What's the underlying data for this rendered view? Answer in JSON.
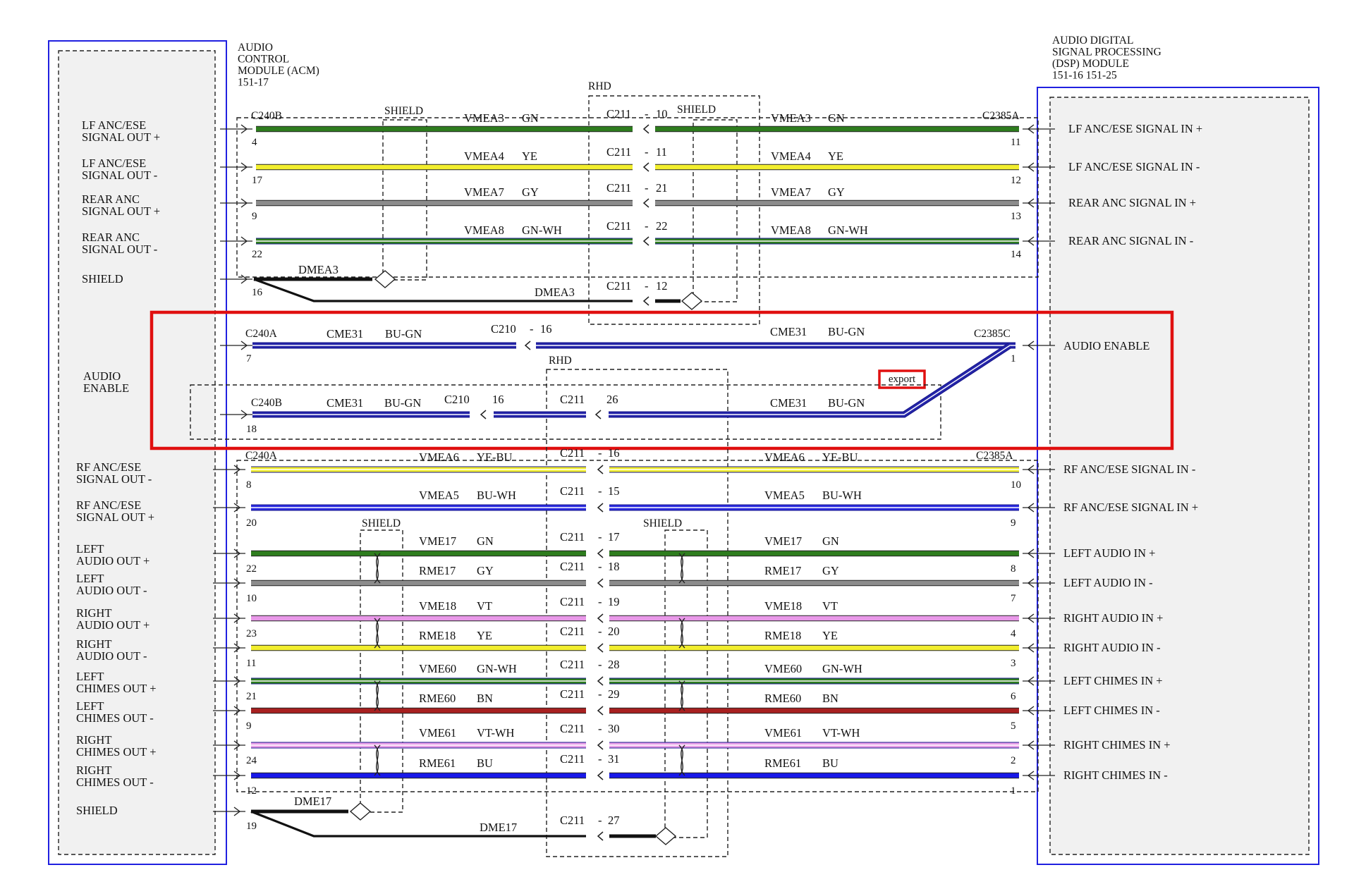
{
  "modules": {
    "acm": {
      "title": [
        "AUDIO",
        "CONTROL",
        "MODULE (ACM)",
        "151-17"
      ]
    },
    "dsp": {
      "title": [
        "AUDIO DIGITAL",
        "SIGNAL PROCESSING",
        "(DSP) MODULE",
        "151-16   151-25"
      ]
    }
  },
  "rhd_label": "RHD",
  "shield_label": "SHIELD",
  "export_label": "export",
  "colors": {
    "GN": "#2e7d1e",
    "YE": "#f2ee2e",
    "GY": "#8c8c8c",
    "BU": "#1818e8",
    "BN": "#a82020",
    "VT": "#e898e8",
    "BU-GN": "#2424a8",
    "YE-BU": "#f2ee2e",
    "BU-WH": "#2a2ae0",
    "GN-WH": "#2e7d1e",
    "VT-WH": "#e8a0e8",
    "highlight": "#e01010",
    "module_border": "#2020e0"
  },
  "upper_pins": [
    {
      "left": [
        "LF ANC/ESE",
        "SIGNAL OUT +"
      ],
      "right": "LF ANC/ESE SIGNAL IN +",
      "lpin": "4",
      "rpin": "11",
      "circuit": "VMEA3",
      "color": "GN",
      "inline": "C211",
      "ipin": "10"
    },
    {
      "left": [
        "LF ANC/ESE",
        "SIGNAL OUT -"
      ],
      "right": "LF ANC/ESE SIGNAL IN -",
      "lpin": "17",
      "rpin": "12",
      "circuit": "VMEA4",
      "color": "YE",
      "inline": "C211",
      "ipin": "11"
    },
    {
      "left": [
        "REAR ANC",
        "SIGNAL OUT +"
      ],
      "right": "REAR ANC SIGNAL IN +",
      "lpin": "9",
      "rpin": "13",
      "circuit": "VMEA7",
      "color": "GY",
      "inline": "C211",
      "ipin": "21"
    },
    {
      "left": [
        "REAR ANC",
        "SIGNAL OUT -"
      ],
      "right": "REAR ANC SIGNAL IN -",
      "lpin": "22",
      "rpin": "14",
      "circuit": "VMEA8",
      "color": "GN-WH",
      "inline": "C211",
      "ipin": "22"
    }
  ],
  "upper_shield": {
    "label": "SHIELD",
    "lpin": "16",
    "drain": "DMEA3",
    "inline": "C211",
    "ipin": "12"
  },
  "audio_enable": {
    "left": [
      "AUDIO",
      "ENABLE"
    ],
    "right": "AUDIO ENABLE",
    "right_pin": "1",
    "top": {
      "conn": "C240A",
      "lpin": "7",
      "circuit": "CME31",
      "color": "BU-GN",
      "inline": "C210",
      "ipin": "16",
      "rconn": "C2385C"
    },
    "bottom": {
      "conn": "C240B",
      "lpin": "18",
      "circuit": "CME31",
      "color": "BU-GN",
      "inline1": "C210",
      "ipin1": "16",
      "inline2": "C211",
      "ipin2": "26"
    }
  },
  "connectors": {
    "upper_left": "C240B",
    "upper_right": "C2385A",
    "lower_left": "C240A",
    "lower_right": "C2385A"
  },
  "lower_pins": [
    {
      "left": [
        "RF ANC/ESE",
        "SIGNAL OUT -"
      ],
      "right": "RF ANC/ESE SIGNAL IN -",
      "lpin": "8",
      "rpin": "10",
      "circuit": "VMEA6",
      "color": "YE-BU",
      "inline": "C211",
      "ipin": "16"
    },
    {
      "left": [
        "RF ANC/ESE",
        "SIGNAL OUT +"
      ],
      "right": "RF ANC/ESE SIGNAL IN +",
      "lpin": "20",
      "rpin": "9",
      "circuit": "VMEA5",
      "color": "BU-WH",
      "inline": "C211",
      "ipin": "15"
    },
    {
      "left": [
        "LEFT",
        "AUDIO OUT +"
      ],
      "right": "LEFT AUDIO IN +",
      "lpin": "22",
      "rpin": "8",
      "circuit": "VME17",
      "color": "GN",
      "inline": "C211",
      "ipin": "17"
    },
    {
      "left": [
        "LEFT",
        "AUDIO OUT -"
      ],
      "right": "LEFT AUDIO IN -",
      "lpin": "10",
      "rpin": "7",
      "circuit": "RME17",
      "color": "GY",
      "inline": "C211",
      "ipin": "18"
    },
    {
      "left": [
        "RIGHT",
        "AUDIO OUT +"
      ],
      "right": "RIGHT AUDIO IN +",
      "lpin": "23",
      "rpin": "4",
      "circuit": "VME18",
      "color": "VT",
      "inline": "C211",
      "ipin": "19"
    },
    {
      "left": [
        "RIGHT",
        "AUDIO OUT -"
      ],
      "right": "RIGHT AUDIO IN -",
      "lpin": "11",
      "rpin": "3",
      "circuit": "RME18",
      "color": "YE",
      "inline": "C211",
      "ipin": "20"
    },
    {
      "left": [
        "LEFT",
        "CHIMES OUT +"
      ],
      "right": "LEFT CHIMES IN +",
      "lpin": "21",
      "rpin": "6",
      "circuit": "VME60",
      "color": "GN-WH",
      "inline": "C211",
      "ipin": "28"
    },
    {
      "left": [
        "LEFT",
        "CHIMES OUT -"
      ],
      "right": "LEFT CHIMES IN -",
      "lpin": "9",
      "rpin": "5",
      "circuit": "RME60",
      "color": "BN",
      "inline": "C211",
      "ipin": "29"
    },
    {
      "left": [
        "RIGHT",
        "CHIMES OUT +"
      ],
      "right": "RIGHT CHIMES IN +",
      "lpin": "24",
      "rpin": "2",
      "circuit": "VME61",
      "color": "VT-WH",
      "inline": "C211",
      "ipin": "30"
    },
    {
      "left": [
        "RIGHT",
        "CHIMES OUT -"
      ],
      "right": "RIGHT CHIMES IN -",
      "lpin": "12",
      "rpin": "1",
      "circuit": "RME61",
      "color": "BU",
      "inline": "C211",
      "ipin": "31"
    }
  ],
  "lower_shield": {
    "label": "SHIELD",
    "lpin": "19",
    "drain": "DME17",
    "inline": "C211",
    "ipin": "27"
  }
}
